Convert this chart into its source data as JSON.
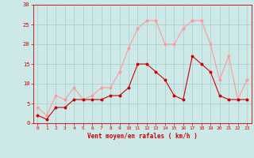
{
  "hours": [
    0,
    1,
    2,
    3,
    4,
    5,
    6,
    7,
    8,
    9,
    10,
    11,
    12,
    13,
    14,
    15,
    16,
    17,
    18,
    19,
    20,
    21,
    22,
    23
  ],
  "wind_avg": [
    2,
    1,
    4,
    4,
    6,
    6,
    6,
    6,
    7,
    7,
    9,
    15,
    15,
    13,
    11,
    7,
    6,
    17,
    15,
    13,
    7,
    6,
    6,
    6
  ],
  "wind_gust": [
    4,
    2,
    7,
    6,
    9,
    6,
    7,
    9,
    9,
    13,
    19,
    24,
    26,
    26,
    20,
    20,
    24,
    26,
    26,
    20,
    11,
    17,
    6,
    11
  ],
  "background_color": "#cce9e8",
  "grid_color": "#aacccc",
  "avg_color": "#cc0000",
  "gust_color": "#ff9999",
  "xlabel": "Vent moyen/en rafales ( km/h )",
  "xlabel_color": "#cc0000",
  "tick_color": "#cc0000",
  "axis_color": "#cc0000",
  "ylim": [
    0,
    30
  ],
  "yticks": [
    0,
    5,
    10,
    15,
    20,
    25,
    30
  ],
  "xlim": [
    -0.5,
    23.5
  ]
}
